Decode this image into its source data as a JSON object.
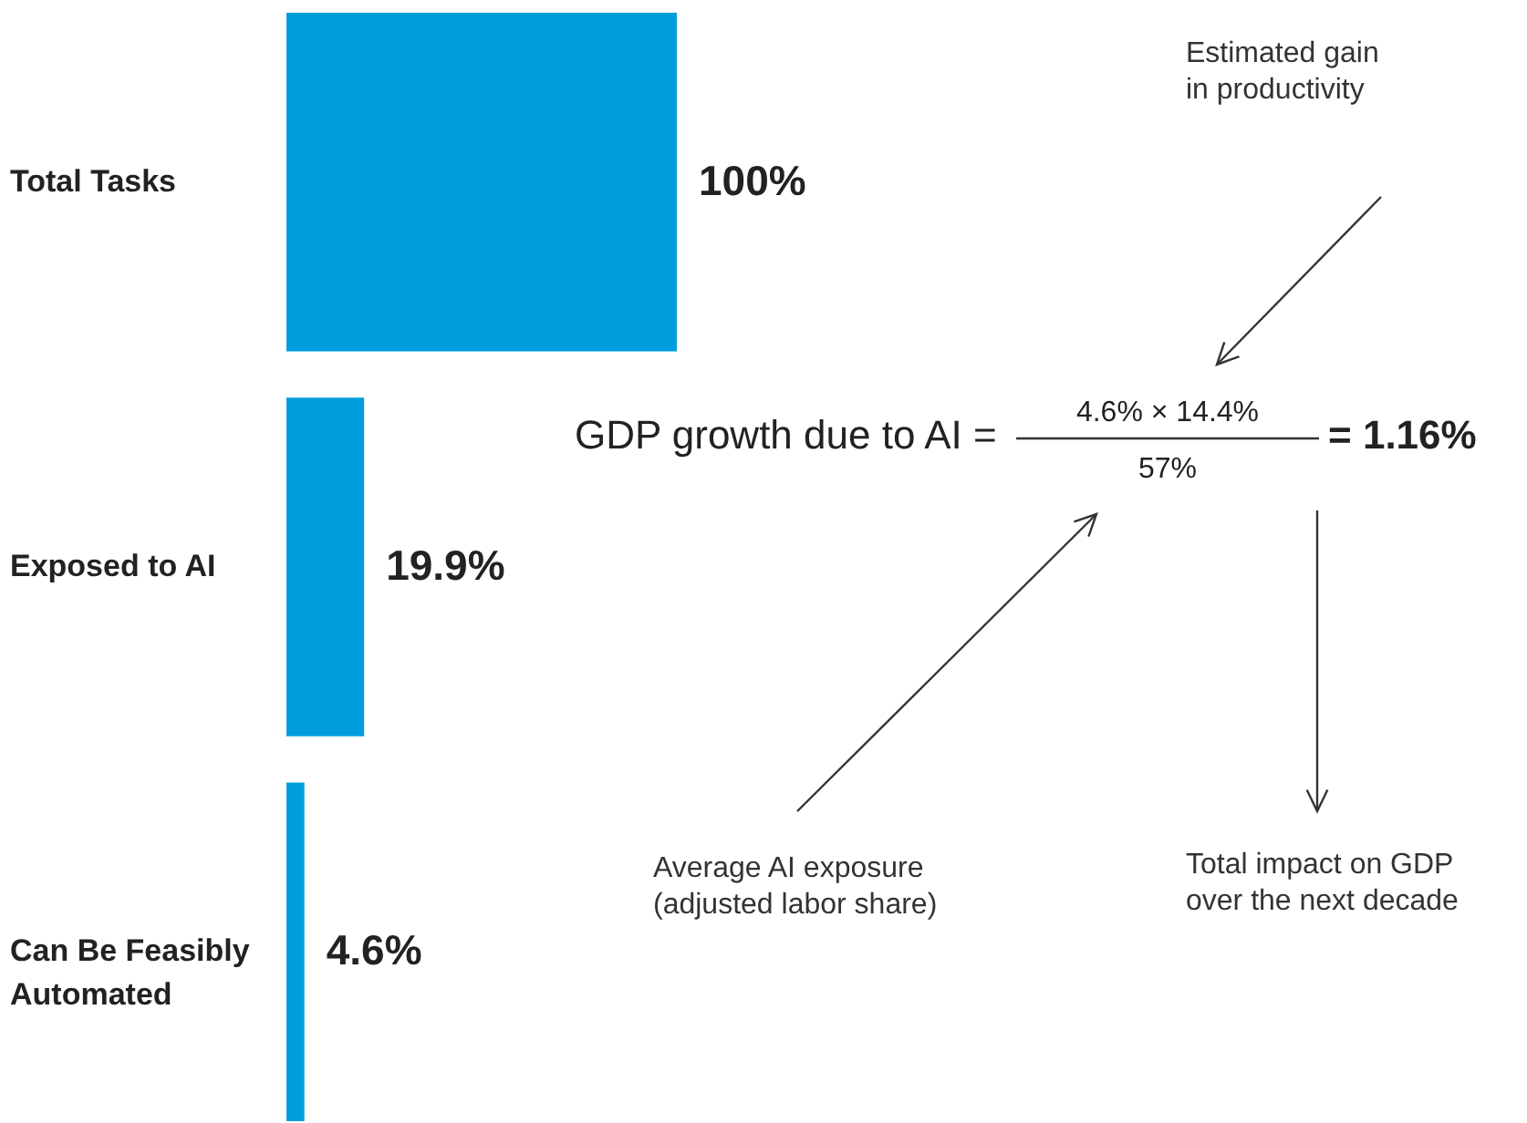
{
  "chart_data": {
    "type": "bar",
    "orientation": "horizontal",
    "categories": [
      "Total Tasks",
      "Exposed to AI",
      "Can Be Feasibly Automated"
    ],
    "values": [
      100,
      19.9,
      4.6
    ],
    "value_labels": [
      "100%",
      "19.9%",
      "4.6%"
    ],
    "color": "#009ddc",
    "xlim": [
      0,
      100
    ],
    "tick_labels": "y",
    "annotations": [
      "GDP growth due to AI =",
      "4.6% × 14.4%",
      "57%",
      "= 1.16%",
      "Estimated gain in productivity",
      "Average AI exposure (adjusted labor share)",
      "Total impact on GDP over the next decade"
    ]
  }
}
